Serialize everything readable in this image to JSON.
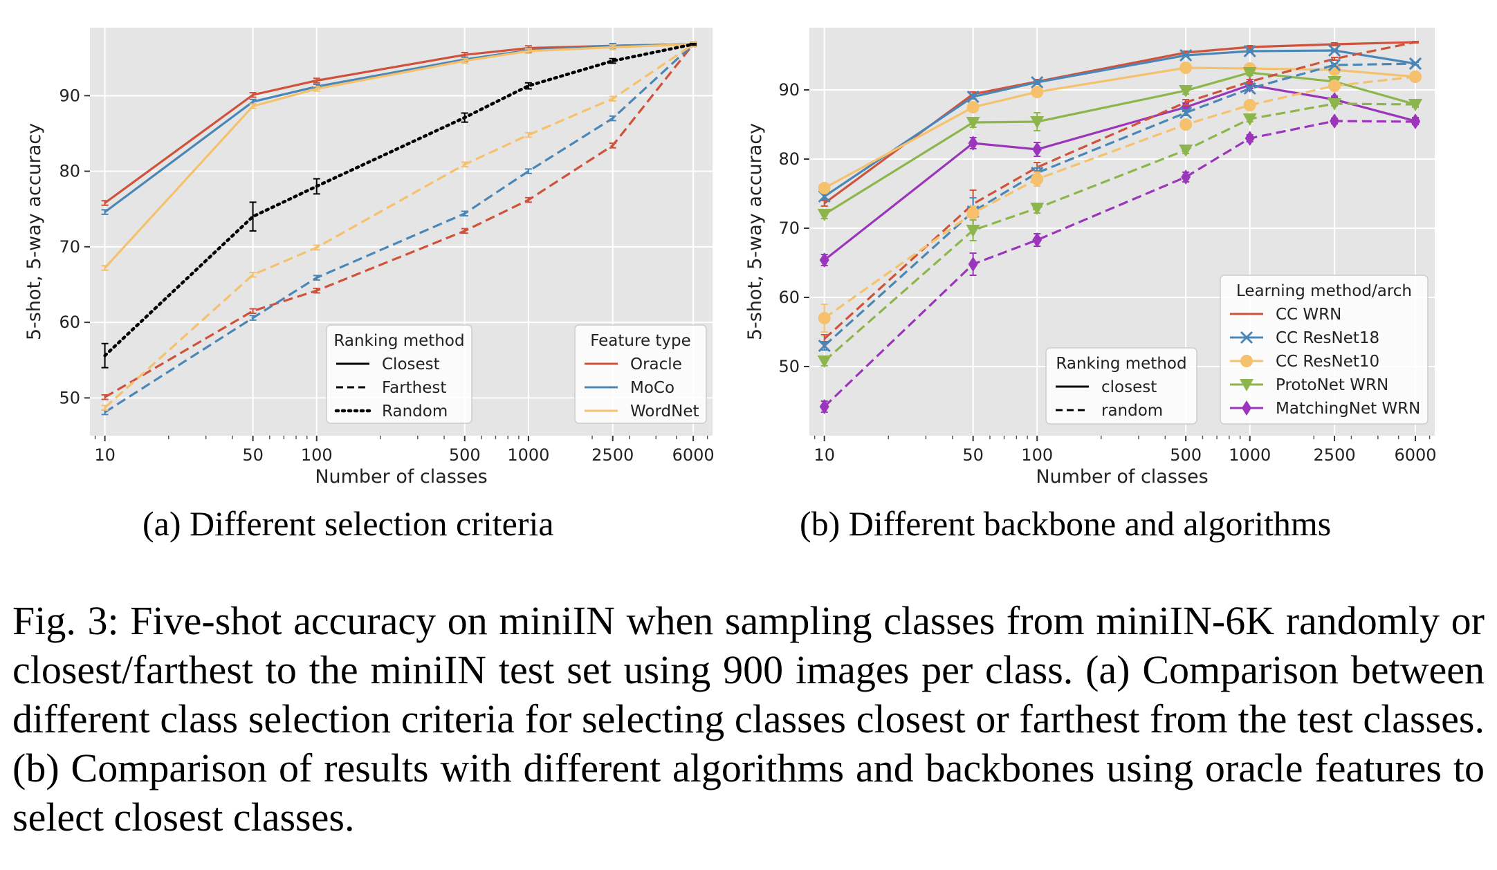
{
  "subcaptions": {
    "a": "(a) Different selection criteria",
    "b": "(b) Different backbone and algorithms"
  },
  "figure_caption": "Fig. 3: Five-shot accuracy on miniIN when sampling classes from miniIN-6K randomly or closest/farthest to the miniIN test set using 900 images per class. (a) Comparison between different class selection criteria for selecting classes closest or farthest from the test classes. (b) Comparison of results with different algorithms and backbones using oracle features to select closest classes.",
  "colors": {
    "panel_bg": "#e5e5e5",
    "grid": "#ffffff",
    "oracle_cc_wrn": "#d0523b",
    "moco_resnet18": "#4a86b6",
    "wordnet_resnet10": "#f5c16c",
    "protonet_wrn": "#8cb54c",
    "matchingnet_wrn": "#9b35bb",
    "random": "#000000"
  },
  "chart_data": [
    {
      "type": "line",
      "xscale": "log",
      "xlabel": "Number of classes",
      "ylabel": "5-shot, 5-way accuracy",
      "xlim": [
        8.5,
        7400
      ],
      "ylim": [
        45,
        99
      ],
      "xticks": [
        10,
        50,
        100,
        500,
        1000,
        2500,
        6000
      ],
      "xtick_labels": [
        "10",
        "50",
        "100",
        "500",
        "1000",
        "2500",
        "6000"
      ],
      "yticks": [
        50,
        60,
        70,
        80,
        90
      ],
      "ytick_labels": [
        "50",
        "60",
        "70",
        "80",
        "90"
      ],
      "grid": true,
      "legends": [
        {
          "title": "Ranking method",
          "placement": "bottom-center",
          "entries": [
            {
              "label": "Closest",
              "style": "solid"
            },
            {
              "label": "Farthest",
              "style": "dashed"
            },
            {
              "label": "Random",
              "style": "dotted"
            }
          ]
        },
        {
          "title": "Feature type",
          "placement": "bottom-right",
          "entries": [
            {
              "label": "Oracle",
              "color": "#d0523b"
            },
            {
              "label": "MoCo",
              "color": "#4a86b6"
            },
            {
              "label": "WordNet",
              "color": "#f5c16c"
            }
          ]
        }
      ],
      "x": [
        10,
        50,
        100,
        500,
        1000,
        2500,
        6000
      ],
      "series": [
        {
          "color": "#d0523b",
          "style": "solid",
          "marker": "errbar",
          "values": [
            75.8,
            90.1,
            92.0,
            95.4,
            96.3,
            96.6,
            96.8
          ]
        },
        {
          "color": "#4a86b6",
          "style": "solid",
          "marker": "errbar",
          "values": [
            74.6,
            89.2,
            91.2,
            94.8,
            96.0,
            96.6,
            96.8
          ]
        },
        {
          "color": "#f5c16c",
          "style": "solid",
          "marker": "errbar",
          "values": [
            67.2,
            88.6,
            90.9,
            94.6,
            95.9,
            96.4,
            96.8
          ]
        },
        {
          "color": "#d0523b",
          "style": "dashed",
          "marker": "errbar",
          "values": [
            50.1,
            61.5,
            64.2,
            72.1,
            76.2,
            83.4,
            96.8
          ]
        },
        {
          "color": "#4a86b6",
          "style": "dashed",
          "marker": "errbar",
          "values": [
            48.1,
            60.6,
            65.9,
            74.4,
            80.0,
            87.0,
            96.8
          ]
        },
        {
          "color": "#f5c16c",
          "style": "dashed",
          "marker": "errbar",
          "values": [
            48.7,
            66.3,
            69.9,
            80.9,
            84.8,
            89.6,
            96.8
          ]
        },
        {
          "color": "#000000",
          "style": "dotted",
          "marker": "errbar",
          "values": [
            55.6,
            74.0,
            78.0,
            87.1,
            91.3,
            94.6,
            96.8
          ],
          "err": [
            1.6,
            1.9,
            1.0,
            0.6,
            0.4,
            0.3,
            0.1
          ]
        }
      ]
    },
    {
      "type": "line",
      "xscale": "log",
      "xlabel": "Number of classes",
      "ylabel": "5-shot, 5-way accuracy",
      "xlim": [
        8.5,
        7400
      ],
      "ylim": [
        40,
        99
      ],
      "xticks": [
        10,
        50,
        100,
        500,
        1000,
        2500,
        6000
      ],
      "xtick_labels": [
        "10",
        "50",
        "100",
        "500",
        "1000",
        "2500",
        "6000"
      ],
      "yticks": [
        50,
        60,
        70,
        80,
        90
      ],
      "ytick_labels": [
        "50",
        "60",
        "70",
        "80",
        "90"
      ],
      "grid": true,
      "legends": [
        {
          "title": "Ranking method",
          "placement": "bottom-center",
          "entries": [
            {
              "label": "closest",
              "style": "solid"
            },
            {
              "label": "random",
              "style": "dashed"
            }
          ]
        },
        {
          "title": "Learning method/arch",
          "placement": "bottom-right",
          "entries": [
            {
              "label": "CC WRN",
              "color": "#d0523b",
              "marker": "none"
            },
            {
              "label": "CC ResNet18",
              "color": "#4a86b6",
              "marker": "x"
            },
            {
              "label": "CC ResNet10",
              "color": "#f5c16c",
              "marker": "circle"
            },
            {
              "label": "ProtoNet WRN",
              "color": "#8cb54c",
              "marker": "triangle"
            },
            {
              "label": "MatchingNet WRN",
              "color": "#9b35bb",
              "marker": "diamond"
            }
          ]
        }
      ],
      "x": [
        10,
        50,
        100,
        500,
        1000,
        2500,
        6000
      ],
      "series": [
        {
          "name": "CC WRN",
          "color": "#d0523b",
          "style": "solid",
          "marker": "errbar",
          "values": [
            73.6,
            89.4,
            91.2,
            95.4,
            96.2,
            96.6,
            96.9
          ],
          "err": [
            0.4,
            0.3,
            0.3,
            0.2,
            0.2,
            0.2,
            0.1
          ]
        },
        {
          "name": "CC ResNet18",
          "color": "#4a86b6",
          "style": "solid",
          "marker": "x",
          "values": [
            74.6,
            89.0,
            91.1,
            95.0,
            95.6,
            95.7,
            93.8
          ],
          "err": [
            0.4,
            0.3,
            0.3,
            0.2,
            0.2,
            0.2,
            0.2
          ]
        },
        {
          "name": "CC ResNet10",
          "color": "#f5c16c",
          "style": "solid",
          "marker": "circle",
          "values": [
            75.8,
            87.5,
            89.7,
            93.2,
            93.1,
            92.9,
            91.9
          ],
          "err": [
            0.4,
            0.4,
            0.3,
            0.2,
            0.2,
            0.2,
            0.2
          ]
        },
        {
          "name": "ProtoNet WRN",
          "color": "#8cb54c",
          "style": "solid",
          "marker": "triangle",
          "values": [
            72.0,
            85.3,
            85.4,
            89.9,
            92.5,
            91.2,
            87.9
          ],
          "err": [
            0.6,
            0.7,
            1.3,
            0.5,
            0.4,
            0.4,
            0.4
          ]
        },
        {
          "name": "MatchingNet WRN",
          "color": "#9b35bb",
          "style": "solid",
          "marker": "diamond",
          "values": [
            65.4,
            82.3,
            81.4,
            87.5,
            90.7,
            88.6,
            85.5
          ],
          "err": [
            0.8,
            0.8,
            1.0,
            0.6,
            0.5,
            0.5,
            0.5
          ]
        },
        {
          "name": "CC WRN",
          "color": "#d0523b",
          "style": "dashed",
          "marker": "errbar",
          "values": [
            54.0,
            73.5,
            78.8,
            88.2,
            91.2,
            94.5,
            96.9
          ],
          "err": [
            0.6,
            2.0,
            0.7,
            0.4,
            0.3,
            0.2,
            0.1
          ]
        },
        {
          "name": "CC ResNet18",
          "color": "#4a86b6",
          "style": "dashed",
          "marker": "x",
          "values": [
            53.0,
            72.4,
            78.0,
            86.7,
            90.2,
            93.6,
            93.8
          ],
          "err": [
            0.6,
            2.0,
            0.7,
            0.4,
            0.3,
            0.2,
            0.2
          ]
        },
        {
          "name": "CC ResNet10",
          "color": "#f5c16c",
          "style": "dashed",
          "marker": "circle",
          "values": [
            57.0,
            72.2,
            77.1,
            85.0,
            87.8,
            90.6,
            91.9
          ],
          "err": [
            2.0,
            1.0,
            1.0,
            0.4,
            0.3,
            0.2,
            0.2
          ]
        },
        {
          "name": "ProtoNet WRN",
          "color": "#8cb54c",
          "style": "dashed",
          "marker": "triangle",
          "values": [
            50.8,
            69.7,
            72.9,
            81.3,
            85.8,
            88.0,
            87.9
          ],
          "err": [
            0.7,
            1.5,
            0.7,
            0.5,
            0.4,
            0.3,
            0.3
          ]
        },
        {
          "name": "MatchingNet WRN",
          "color": "#9b35bb",
          "style": "dashed",
          "marker": "diamond",
          "values": [
            44.2,
            64.8,
            68.3,
            77.4,
            83.0,
            85.5,
            85.4
          ],
          "err": [
            0.8,
            1.6,
            0.9,
            0.7,
            0.5,
            0.4,
            0.4
          ]
        }
      ]
    }
  ]
}
